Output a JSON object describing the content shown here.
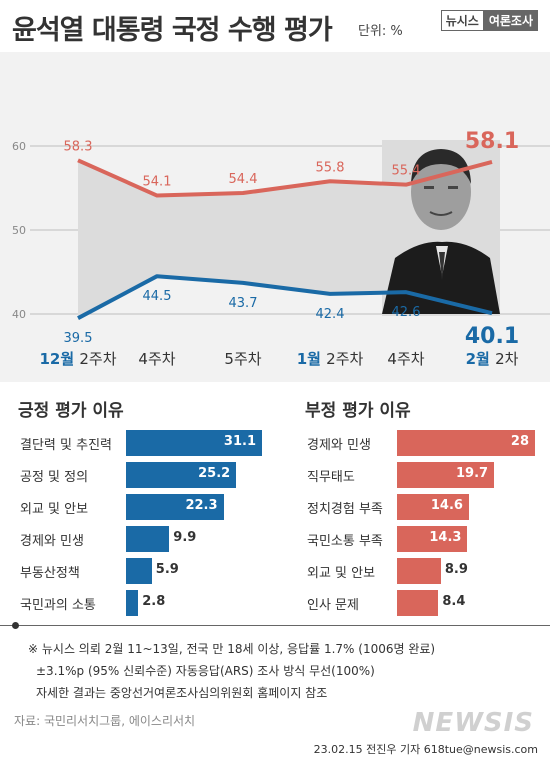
{
  "header": {
    "title": "윤석열 대통령 국정 수행 평가",
    "unit": "단위: %",
    "brand_left": "뉴시스",
    "brand_right": "여론조사"
  },
  "chart_data": [
    {
      "type": "line",
      "x": [
        "12월 2주차",
        "4주차",
        "5주차",
        "1월 2주차",
        "4주차",
        "2월 2차"
      ],
      "x_tick_labels": [
        {
          "month": "12월",
          "week": "2주차"
        },
        {
          "month": "",
          "week": "4주차"
        },
        {
          "month": "",
          "week": "5주차"
        },
        {
          "month": "1월",
          "week": "2주차"
        },
        {
          "month": "",
          "week": "4주차"
        },
        {
          "month": "2월",
          "week": "2차"
        }
      ],
      "y_ticks": [
        "30",
        "40",
        "50",
        "60"
      ],
      "ylim": [
        30,
        62
      ],
      "grid": true,
      "series": [
        {
          "values": [
            58.3,
            54.1,
            54.4,
            55.8,
            55.4,
            58.1
          ],
          "labels": [
            "58.3",
            "54.1",
            "54.4",
            "55.8",
            "55.4",
            "58.1"
          ],
          "color": "#d9665b"
        },
        {
          "values": [
            39.5,
            44.5,
            43.7,
            42.4,
            42.6,
            40.1
          ],
          "labels": [
            "39.5",
            "44.5",
            "43.7",
            "42.4",
            "42.6",
            "40.1"
          ],
          "color": "#1a6aa6"
        }
      ]
    },
    {
      "type": "bar",
      "title": "긍정 평가 이유",
      "categories": [
        "결단력 및 추진력",
        "공정 및 정의",
        "외교 및 안보",
        "경제와 민생",
        "부동산정책",
        "국민과의 소통"
      ],
      "values": [
        31.1,
        25.2,
        22.3,
        9.9,
        5.9,
        2.8
      ],
      "labels": [
        "31.1",
        "25.2",
        "22.3",
        "9.9",
        "5.9",
        "2.8"
      ],
      "color": "#1a6aa6",
      "xlim": [
        0,
        31.1
      ]
    },
    {
      "type": "bar",
      "title": "부정 평가 이유",
      "categories": [
        "경제와 민생",
        "직무태도",
        "정치경험 부족",
        "국민소통 부족",
        "외교 및 안보",
        "인사 문제"
      ],
      "values": [
        28,
        19.7,
        14.6,
        14.3,
        8.9,
        8.4
      ],
      "labels": [
        "28",
        "19.7",
        "14.6",
        "14.3",
        "8.9",
        "8.4"
      ],
      "color": "#d9665b",
      "xlim": [
        0,
        28
      ]
    }
  ],
  "notes": [
    "※ 뉴시스 의뢰 2월 11~13일, 전국 만 18세 이상, 응답률 1.7% (1006명 완료)",
    "±3.1%p (95% 신뢰수준) 자동응답(ARS) 조사 방식 무선(100%)",
    "자세한 결과는 중앙선거여론조사심의위원회 홈페이지 참조"
  ],
  "source": "자료: 국민리서치그룹, 에이스리서치",
  "watermark": "NEWSIS",
  "credit": "23.02.15 전진우 기자 618tue@newsis.com",
  "colors": {
    "negative": "#d9665b",
    "positive": "#1a6aa6",
    "accent_month": "#1a6aa6"
  }
}
